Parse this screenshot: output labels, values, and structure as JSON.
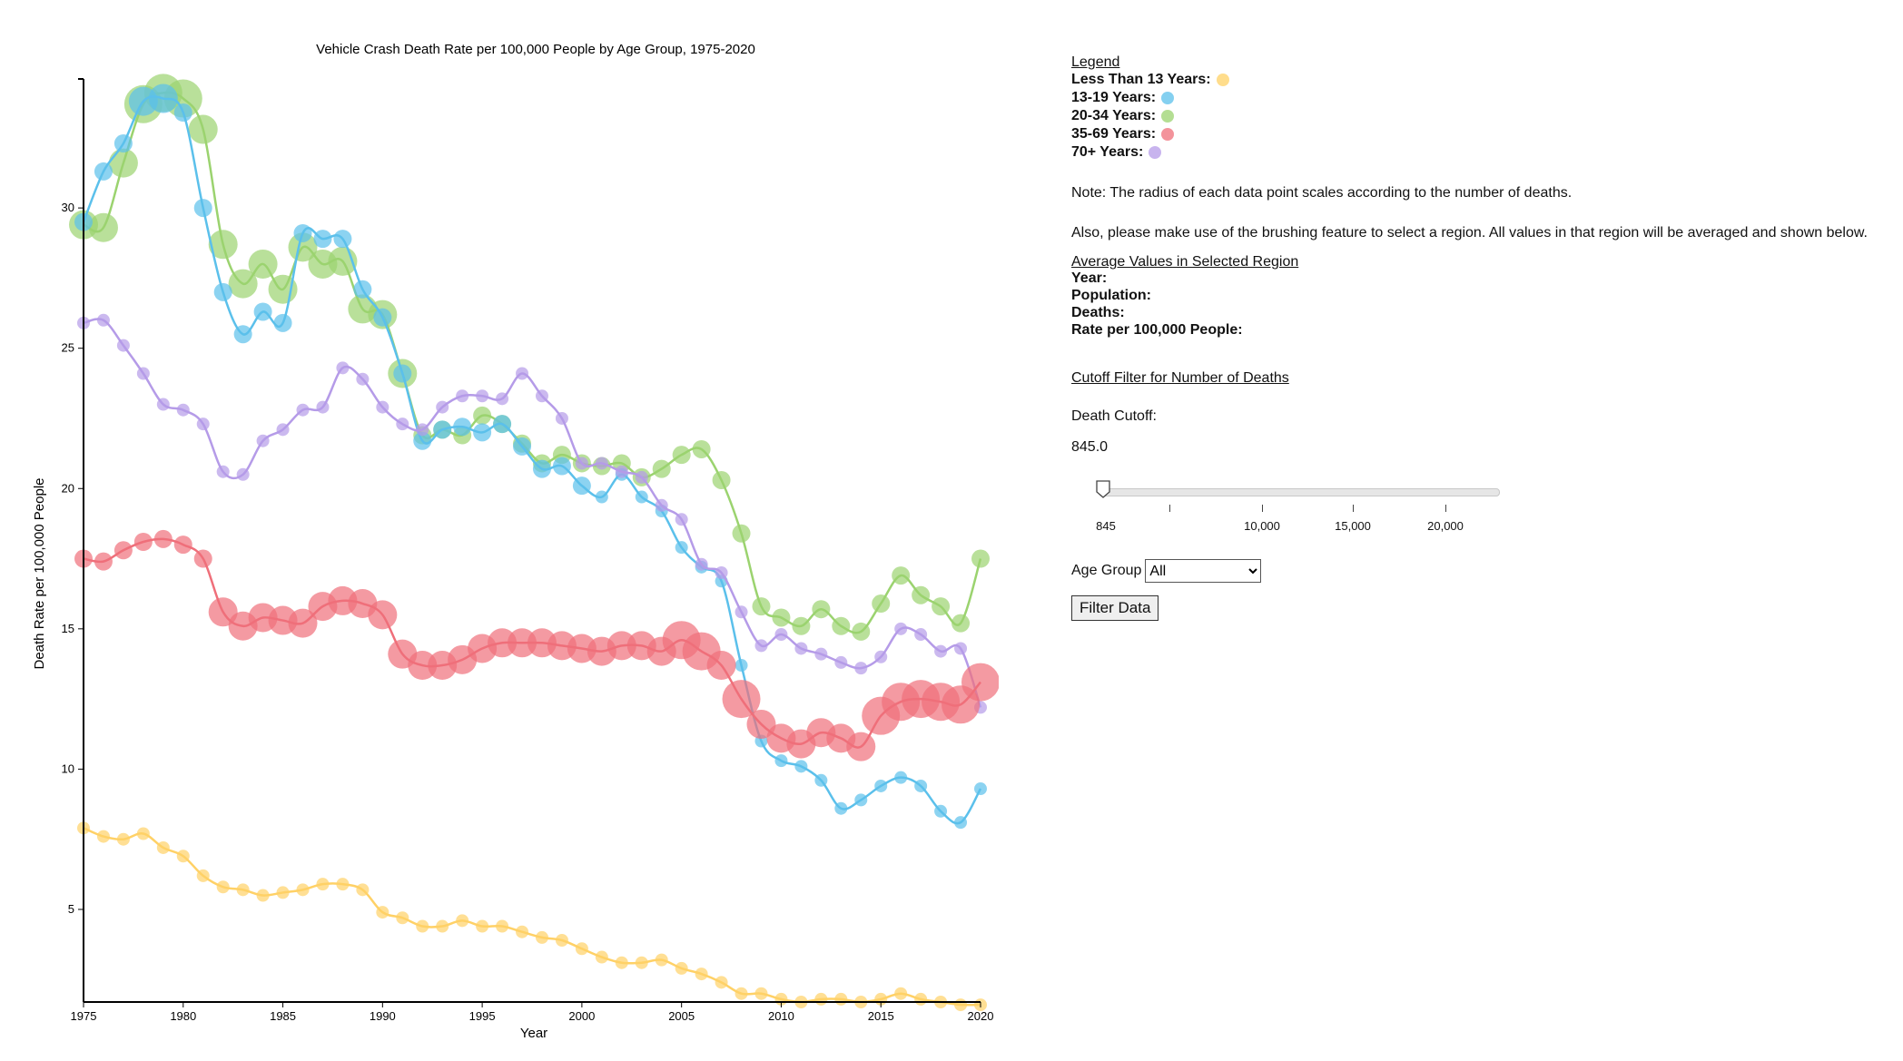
{
  "chart_data": {
    "type": "line",
    "title": "Vehicle Crash Death Rate per 100,000 People by Age Group, 1975-2020",
    "xlabel": "Year",
    "ylabel": "Death Rate per 100,000 People",
    "xlim": [
      1975,
      2020
    ],
    "ylim": [
      1.7,
      34.5
    ],
    "x_ticks": [
      1975,
      1980,
      1985,
      1990,
      1995,
      2000,
      2005,
      2010,
      2015,
      2020
    ],
    "y_ticks": [
      5,
      10,
      15,
      20,
      25,
      30
    ],
    "x": [
      1975,
      1976,
      1977,
      1978,
      1979,
      1980,
      1981,
      1982,
      1983,
      1984,
      1985,
      1986,
      1987,
      1988,
      1989,
      1990,
      1991,
      1992,
      1993,
      1994,
      1995,
      1996,
      1997,
      1998,
      1999,
      2000,
      2001,
      2002,
      2003,
      2004,
      2005,
      2006,
      2007,
      2008,
      2009,
      2010,
      2011,
      2012,
      2013,
      2014,
      2015,
      2016,
      2017,
      2018,
      2019,
      2020
    ],
    "series": [
      {
        "name": "Less Than 13 Years",
        "color": "#ffd166",
        "values": [
          7.9,
          7.6,
          7.5,
          7.7,
          7.2,
          6.9,
          6.2,
          5.8,
          5.7,
          5.5,
          5.6,
          5.7,
          5.9,
          5.9,
          5.7,
          4.9,
          4.7,
          4.4,
          4.4,
          4.6,
          4.4,
          4.4,
          4.2,
          4.0,
          3.9,
          3.6,
          3.3,
          3.1,
          3.1,
          3.2,
          2.9,
          2.7,
          2.4,
          2.0,
          2.0,
          1.8,
          1.7,
          1.8,
          1.8,
          1.7,
          1.8,
          2.0,
          1.8,
          1.7,
          1.6,
          1.6
        ],
        "sizes": [
          1,
          1,
          1,
          1,
          1,
          1,
          1,
          1,
          1,
          1,
          1,
          1,
          1,
          1,
          1,
          1,
          1,
          1,
          1,
          1,
          1,
          1,
          1,
          1,
          1,
          1,
          1,
          1,
          1,
          1,
          1,
          1,
          1,
          1,
          1,
          1,
          1,
          1,
          1,
          1,
          1,
          1,
          1,
          1,
          1,
          1
        ]
      },
      {
        "name": "13-19 Years",
        "color": "#5bc0eb",
        "values": [
          29.5,
          31.3,
          32.3,
          33.8,
          33.9,
          33.4,
          30.0,
          27.0,
          25.5,
          26.3,
          25.9,
          29.1,
          28.9,
          28.9,
          27.1,
          26.1,
          24.1,
          21.7,
          22.1,
          22.2,
          22.0,
          22.3,
          21.5,
          20.7,
          20.8,
          20.1,
          19.7,
          20.5,
          19.7,
          19.2,
          17.9,
          17.2,
          16.7,
          13.7,
          11.0,
          10.3,
          10.1,
          9.6,
          8.6,
          8.9,
          9.4,
          9.7,
          9.4,
          8.5,
          8.1,
          9.3
        ],
        "sizes": [
          2,
          2,
          2,
          3,
          3,
          2,
          2,
          2,
          2,
          2,
          2,
          2,
          2,
          2,
          2,
          2,
          2,
          2,
          2,
          2,
          2,
          2,
          2,
          2,
          2,
          2,
          1,
          1,
          1,
          1,
          1,
          1,
          1,
          1,
          1,
          1,
          1,
          1,
          1,
          1,
          1,
          1,
          1,
          1,
          1,
          1
        ]
      },
      {
        "name": "20-34 Years",
        "color": "#9bd36f",
        "values": [
          29.4,
          29.3,
          31.6,
          33.7,
          34.1,
          33.9,
          32.8,
          28.7,
          27.3,
          28.0,
          27.1,
          28.6,
          28.0,
          28.1,
          26.4,
          26.2,
          24.1,
          21.9,
          22.1,
          21.9,
          22.6,
          22.3,
          21.6,
          20.9,
          21.2,
          20.9,
          20.8,
          20.9,
          20.4,
          20.7,
          21.2,
          21.4,
          20.3,
          18.4,
          15.8,
          15.4,
          15.1,
          15.7,
          15.1,
          14.9,
          15.9,
          16.9,
          16.2,
          15.8,
          15.2,
          17.5
        ],
        "sizes": [
          3,
          3,
          3,
          4,
          4,
          4,
          3,
          3,
          3,
          3,
          3,
          3,
          3,
          3,
          3,
          3,
          3,
          2,
          2,
          2,
          2,
          2,
          2,
          2,
          2,
          2,
          2,
          2,
          2,
          2,
          2,
          2,
          2,
          2,
          2,
          2,
          2,
          2,
          2,
          2,
          2,
          2,
          2,
          2,
          2,
          2
        ]
      },
      {
        "name": "35-69 Years",
        "color": "#ef6f7a",
        "values": [
          17.5,
          17.4,
          17.8,
          18.1,
          18.2,
          18.0,
          17.5,
          15.6,
          15.1,
          15.4,
          15.3,
          15.2,
          15.8,
          16.0,
          15.9,
          15.5,
          14.1,
          13.7,
          13.7,
          13.9,
          14.3,
          14.5,
          14.5,
          14.5,
          14.4,
          14.3,
          14.2,
          14.4,
          14.4,
          14.2,
          14.6,
          14.2,
          13.7,
          12.5,
          11.6,
          11.1,
          10.9,
          11.3,
          11.1,
          10.8,
          11.9,
          12.4,
          12.5,
          12.4,
          12.3,
          13.1
        ],
        "sizes": [
          2,
          2,
          2,
          2,
          2,
          2,
          2,
          3,
          3,
          3,
          3,
          3,
          3,
          3,
          3,
          3,
          3,
          3,
          3,
          3,
          3,
          3,
          3,
          3,
          3,
          3,
          3,
          3,
          3,
          3,
          4,
          4,
          3,
          4,
          3,
          3,
          3,
          3,
          3,
          3,
          4,
          4,
          4,
          4,
          4,
          4
        ]
      },
      {
        "name": "70+ Years",
        "color": "#b59be8",
        "values": [
          25.9,
          26.0,
          25.1,
          24.1,
          23.0,
          22.8,
          22.3,
          20.6,
          20.5,
          21.7,
          22.1,
          22.8,
          22.9,
          24.3,
          23.9,
          22.9,
          22.3,
          22.1,
          22.9,
          23.3,
          23.3,
          23.2,
          24.1,
          23.3,
          22.5,
          20.9,
          20.9,
          20.6,
          20.4,
          19.4,
          18.9,
          17.3,
          17.0,
          15.6,
          14.4,
          14.8,
          14.3,
          14.1,
          13.8,
          13.6,
          14.0,
          15.0,
          14.8,
          14.2,
          14.3,
          12.2
        ],
        "sizes": [
          1,
          1,
          1,
          1,
          1,
          1,
          1,
          1,
          1,
          1,
          1,
          1,
          1,
          1,
          1,
          1,
          1,
          1,
          1,
          1,
          1,
          1,
          1,
          1,
          1,
          1,
          1,
          1,
          1,
          1,
          1,
          1,
          1,
          1,
          1,
          1,
          1,
          1,
          1,
          1,
          1,
          1,
          1,
          1,
          1,
          1
        ]
      }
    ]
  },
  "legend": {
    "title": "Legend",
    "items": [
      {
        "label": "Less Than 13 Years:",
        "color": "#ffd166"
      },
      {
        "label": "13-19 Years:",
        "color": "#5bc0eb"
      },
      {
        "label": "20-34 Years:",
        "color": "#9bd36f"
      },
      {
        "label": "35-69 Years:",
        "color": "#ef6f7a"
      },
      {
        "label": "70+ Years:",
        "color": "#b59be8"
      }
    ]
  },
  "notes": {
    "radius": "Note: The radius of each data point scales according to the number of deaths.",
    "brushing": "Also, please make use of the brushing feature to select a region. All values in that region will be averaged and shown below."
  },
  "averages": {
    "title": "Average Values in Selected Region",
    "year_label": "Year:",
    "population_label": "Population:",
    "deaths_label": "Deaths:",
    "rate_label": "Rate per 100,000 People:"
  },
  "cutoff": {
    "title": "Cutoff Filter for Number of Deaths",
    "label": "Death Cutoff:",
    "value": "845.0",
    "slider_min": 845,
    "slider_max": 20000,
    "slider_value": 845,
    "ticks": [
      "845",
      "10,000",
      "15,000",
      "20,000"
    ]
  },
  "filter": {
    "age_label": "Age Group",
    "selected": "All",
    "button_label": "Filter Data"
  }
}
